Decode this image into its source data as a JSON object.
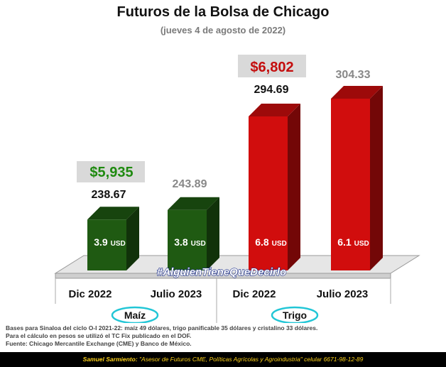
{
  "title": "Futuros de la Bolsa de Chicago",
  "subtitle": "(jueves 4 de agosto de 2022)",
  "hashtag": "#AlguienTieneQueDecirlo",
  "chart_data": {
    "type": "bar",
    "title": "Futuros de la Bolsa de Chicago",
    "subtitle": "(jueves 4 de agosto de 2022)",
    "categories": [
      "Dic 2022",
      "Julio 2023",
      "Dic 2022",
      "Julio 2023"
    ],
    "groups": [
      {
        "label": "Maíz",
        "categories": [
          "Dic 2022",
          "Julio 2023"
        ],
        "color": "#1f5a12",
        "price_mxn": "$5,935",
        "price_color": "#1f8a10"
      },
      {
        "label": "Trigo",
        "categories": [
          "Dic 2022",
          "Julio 2023"
        ],
        "color": "#d10d0d",
        "price_mxn": "$6,802",
        "price_color": "#c40d0d"
      }
    ],
    "values": [
      238.67,
      243.89,
      294.69,
      304.33
    ],
    "value_labels": [
      "238.67",
      "243.89",
      "294.69",
      "304.33"
    ],
    "usd_labels": [
      "3.9 USD",
      "3.8 USD",
      "6.8 USD",
      "6.1 USD"
    ],
    "bar_colors": [
      "#1f5a12",
      "#1f5a12",
      "#d10d0d",
      "#d10d0d"
    ],
    "value_label_colors": [
      "#111111",
      "#888888",
      "#111111",
      "#888888"
    ],
    "ylim": [
      0,
      310
    ],
    "grid": false,
    "xlabel": "",
    "ylabel": ""
  },
  "notes": [
    "Bases para Sinaloa del ciclo O-I 2021-22: maíz 49 dólares, trigo panificable 35 dólares y cristalino 33 dólares.",
    "Para el cálculo en pesos se utilizó el TC Fix publicado en el DOF.",
    "Fuente: Chicago Mercantile Exchange (CME) y Banco de México."
  ],
  "footer": {
    "author": "Samuel Sarmiento:",
    "text": " \"Asesor de Futuros CME, Políticas Agrícolas y Agroindustria\" celular 6671-98-12-89"
  }
}
